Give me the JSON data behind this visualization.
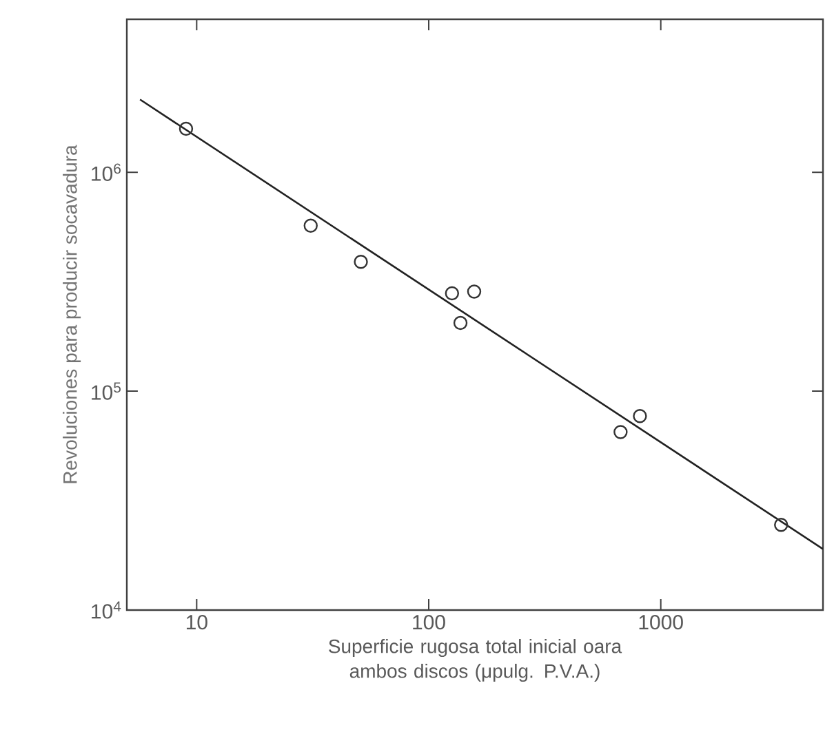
{
  "chart_data": {
    "type": "scatter",
    "xlabel": "Superficie rugosa total inicial oara ambos discos (μpulg. P.V.A.)",
    "ylabel": "Revoluciones para producir socavadura",
    "log": "xy",
    "marker": "circle",
    "xlim": [
      5,
      5000
    ],
    "ylim": [
      10000,
      5000000
    ],
    "xticks": [
      10,
      100,
      1000
    ],
    "yticks": [
      {
        "value": 10000,
        "label": "10$^{4}$"
      },
      {
        "value": 100000,
        "label": "10$^{5}$"
      },
      {
        "value": 1000000,
        "label": "10$^{6}$"
      }
    ],
    "series": [
      {
        "color": "#333333",
        "x": [
          9,
          31,
          51,
          126,
          157,
          137,
          671,
          813,
          3300
        ],
        "values": [
          1580000,
          570000,
          390000,
          280000,
          285000,
          205000,
          65000,
          77000,
          24500
        ]
      },
      {
        "type": "line",
        "color": "#222222",
        "marker": "none",
        "x": [
          5.7,
          5000
        ],
        "values": [
          2150000,
          19000
        ]
      }
    ]
  }
}
